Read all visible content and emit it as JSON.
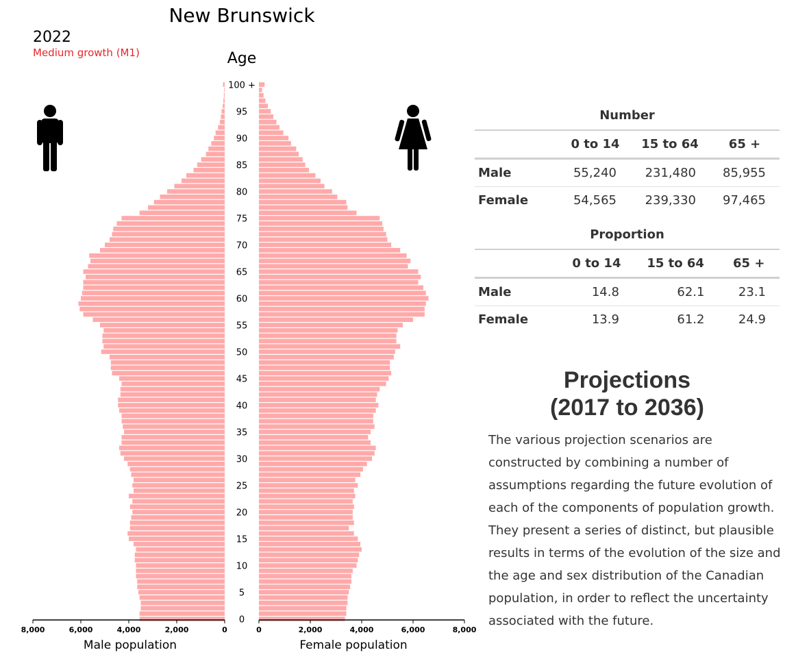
{
  "chart_data": {
    "type": "population-pyramid",
    "title": "New Brunswick",
    "year": "2022",
    "scenario": "Medium growth (M1)",
    "age_axis_title": "Age",
    "age_tick_labels": [
      "0",
      "5",
      "10",
      "15",
      "20",
      "25",
      "30",
      "35",
      "40",
      "45",
      "50",
      "55",
      "60",
      "65",
      "70",
      "75",
      "80",
      "85",
      "90",
      "95",
      "100 +"
    ],
    "x_tick_labels": [
      "8,000",
      "6,000",
      "4,000",
      "2,000",
      "0"
    ],
    "x_tick_labels_female": [
      "0",
      "2,000",
      "4,000",
      "6,000",
      "8,000"
    ],
    "xlim": [
      0,
      8000
    ],
    "male_axis_label": "Male population",
    "female_axis_label": "Female population",
    "bar_color": "#ffaaaa",
    "ages": [
      0,
      1,
      2,
      3,
      4,
      5,
      6,
      7,
      8,
      9,
      10,
      11,
      12,
      13,
      14,
      15,
      16,
      17,
      18,
      19,
      20,
      21,
      22,
      23,
      24,
      25,
      26,
      27,
      28,
      29,
      30,
      31,
      32,
      33,
      34,
      35,
      36,
      37,
      38,
      39,
      40,
      41,
      42,
      43,
      44,
      45,
      46,
      47,
      48,
      49,
      50,
      51,
      52,
      53,
      54,
      55,
      56,
      57,
      58,
      59,
      60,
      61,
      62,
      63,
      64,
      65,
      66,
      67,
      68,
      69,
      70,
      71,
      72,
      73,
      74,
      75,
      76,
      77,
      78,
      79,
      80,
      81,
      82,
      83,
      84,
      85,
      86,
      87,
      88,
      89,
      90,
      91,
      92,
      93,
      94,
      95,
      96,
      97,
      98,
      99,
      100
    ],
    "male": [
      3550,
      3550,
      3500,
      3500,
      3550,
      3600,
      3650,
      3650,
      3700,
      3700,
      3700,
      3750,
      3750,
      3700,
      3800,
      4000,
      4050,
      3950,
      3950,
      3900,
      3850,
      3950,
      3850,
      4000,
      3800,
      3850,
      3800,
      3900,
      3950,
      4050,
      4200,
      4350,
      4400,
      4300,
      4300,
      4200,
      4250,
      4300,
      4300,
      4400,
      4450,
      4450,
      4350,
      4350,
      4300,
      4400,
      4700,
      4750,
      4750,
      4800,
      5150,
      5050,
      5100,
      5100,
      5050,
      5200,
      5500,
      5900,
      6050,
      6100,
      6000,
      5950,
      5900,
      5900,
      5800,
      5900,
      5700,
      5600,
      5650,
      5200,
      5000,
      4800,
      4700,
      4650,
      4500,
      4300,
      3550,
      3200,
      2950,
      2700,
      2400,
      2100,
      1800,
      1600,
      1300,
      1150,
      980,
      780,
      680,
      560,
      450,
      380,
      280,
      200,
      160,
      130,
      80,
      55,
      35,
      25,
      70
    ],
    "female": [
      3350,
      3400,
      3400,
      3450,
      3450,
      3500,
      3550,
      3600,
      3600,
      3650,
      3800,
      3850,
      3900,
      4000,
      3950,
      3850,
      3700,
      3500,
      3700,
      3650,
      3650,
      3700,
      3650,
      3750,
      3700,
      3850,
      3750,
      3950,
      4050,
      4200,
      4400,
      4500,
      4550,
      4350,
      4250,
      4350,
      4500,
      4450,
      4450,
      4550,
      4650,
      4550,
      4600,
      4700,
      4950,
      5050,
      5150,
      5100,
      5100,
      5250,
      5300,
      5500,
      5350,
      5350,
      5400,
      5600,
      6000,
      6450,
      6450,
      6500,
      6600,
      6500,
      6400,
      6200,
      6300,
      6200,
      5800,
      5900,
      5750,
      5500,
      5150,
      5000,
      4950,
      4850,
      4800,
      4700,
      3800,
      3450,
      3400,
      3050,
      2850,
      2550,
      2400,
      2200,
      1950,
      1800,
      1700,
      1550,
      1450,
      1250,
      1150,
      950,
      800,
      680,
      560,
      460,
      350,
      250,
      180,
      120,
      220
    ]
  },
  "number_table": {
    "caption": "Number",
    "headers": [
      "0 to 14",
      "15 to 64",
      "65 +"
    ],
    "rows": [
      {
        "label": "Male",
        "values": [
          "55,240",
          "231,480",
          "85,955"
        ]
      },
      {
        "label": "Female",
        "values": [
          "54,565",
          "239,330",
          "97,465"
        ]
      }
    ]
  },
  "proportion_table": {
    "caption": "Proportion",
    "headers": [
      "0 to 14",
      "15 to 64",
      "65 +"
    ],
    "rows": [
      {
        "label": "Male",
        "values": [
          "14.8",
          "62.1",
          "23.1"
        ]
      },
      {
        "label": "Female",
        "values": [
          "13.9",
          "61.2",
          "24.9"
        ]
      }
    ]
  },
  "projections": {
    "title_line1": "Projections",
    "title_line2": "(2017 to 2036)",
    "text": "The various projection scenarios are constructed by combining a number of assumptions regarding the future evolution of each of the components of population growth. They present a series of distinct, but plausible results in terms of the evolution of the size and the age and sex distribution of the Canadian population, in order to reflect the uncertainty associated with the future."
  },
  "icons": {
    "male": "male-figure-icon",
    "female": "female-figure-icon"
  }
}
